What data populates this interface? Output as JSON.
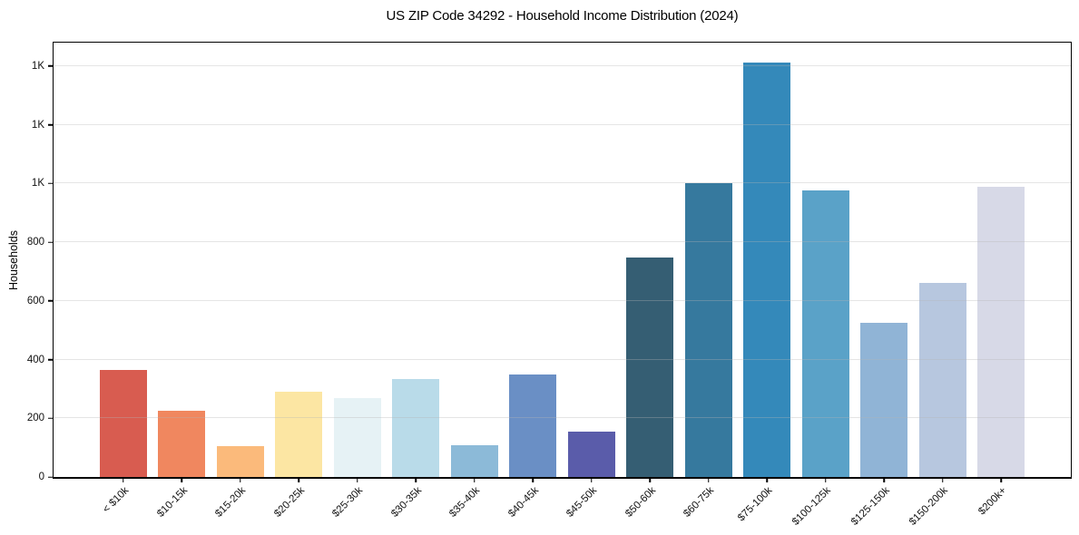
{
  "chart_data": {
    "type": "bar",
    "title": "US ZIP Code 34292 - Household Income Distribution (2024)",
    "xlabel": "",
    "ylabel": "Households",
    "categories": [
      "< $10k",
      "$10-15k",
      "$15-20k",
      "$20-25k",
      "$25-30k",
      "$30-35k",
      "$35-40k",
      "$40-45k",
      "$45-50k",
      "$50-60k",
      "$60-75k",
      "$75-100k",
      "$100-125k",
      "$125-150k",
      "$150-200k",
      "$200k+"
    ],
    "values": [
      366,
      226,
      104,
      291,
      270,
      335,
      107,
      350,
      156,
      748,
      1000,
      1413,
      975,
      524,
      660,
      988
    ],
    "bar_colors": [
      "#d85c50",
      "#f0875f",
      "#fbba7b",
      "#fce6a3",
      "#e6f2f5",
      "#b9dbe9",
      "#8cbad8",
      "#6a8fc5",
      "#5a5caa",
      "#355e73",
      "#36799e",
      "#3489ba",
      "#5aa2c8",
      "#90b4d6",
      "#b7c7df",
      "#d7d9e7"
    ],
    "ylim": [
      0,
      1480
    ],
    "yticks": [
      {
        "value": 0,
        "label": "0"
      },
      {
        "value": 200,
        "label": "200"
      },
      {
        "value": 400,
        "label": "400"
      },
      {
        "value": 600,
        "label": "600"
      },
      {
        "value": 800,
        "label": "800"
      },
      {
        "value": 1000,
        "label": "1K"
      },
      {
        "value": 1200,
        "label": "1K"
      },
      {
        "value": 1400,
        "label": "1K"
      }
    ],
    "grid": true,
    "legend": false,
    "x_tick_rotation": 45,
    "bar_width_units": 0.8,
    "x_margin_units": 1.19
  }
}
